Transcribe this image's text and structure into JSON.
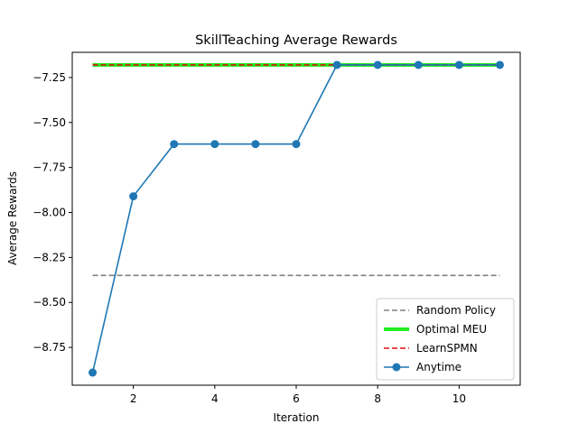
{
  "chart_data": {
    "type": "line",
    "title": "SkillTeaching Average Rewards",
    "xlabel": "Iteration",
    "ylabel": "Average Rewards",
    "xlim": [
      0.5,
      11.5
    ],
    "ylim": [
      -8.96,
      -7.11
    ],
    "xticks": [
      2,
      4,
      6,
      8,
      10
    ],
    "yticks": [
      -8.75,
      -8.5,
      -8.25,
      -8.0,
      -7.75,
      -7.5,
      -7.25
    ],
    "grid": false,
    "legend_position": "lower-right",
    "series": [
      {
        "name": "Random Policy",
        "style": "dashed",
        "color": "#808080",
        "x": [
          1,
          11
        ],
        "y": [
          -8.35,
          -8.35
        ]
      },
      {
        "name": "Optimal MEU",
        "style": "solid-thick",
        "color": "#22ee22",
        "x": [
          1,
          11
        ],
        "y": [
          -7.18,
          -7.18
        ]
      },
      {
        "name": "LearnSPMN",
        "style": "dashed",
        "color": "#dd1111",
        "x": [
          1,
          11
        ],
        "y": [
          -7.18,
          -7.18
        ]
      },
      {
        "name": "Anytime",
        "style": "line-markers",
        "color": "#1f77b4",
        "x": [
          1,
          2,
          3,
          4,
          5,
          6,
          7,
          8,
          9,
          10,
          11
        ],
        "y": [
          -8.89,
          -7.91,
          -7.62,
          -7.62,
          -7.62,
          -7.62,
          -7.18,
          -7.18,
          -7.18,
          -7.18,
          -7.18
        ]
      }
    ]
  }
}
